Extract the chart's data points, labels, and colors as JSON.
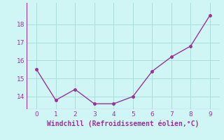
{
  "x": [
    0,
    1,
    2,
    3,
    4,
    5,
    6,
    7,
    8,
    9
  ],
  "y": [
    15.5,
    13.8,
    14.4,
    13.6,
    13.6,
    14.0,
    15.4,
    16.2,
    16.8,
    18.5
  ],
  "line_color": "#993399",
  "marker": "o",
  "marker_size": 2.5,
  "line_width": 1.0,
  "xlabel": "Windchill (Refroidissement éolien,°C)",
  "xlabel_color": "#993399",
  "xlim": [
    -0.5,
    9.5
  ],
  "ylim": [
    13.3,
    19.2
  ],
  "xticks": [
    0,
    1,
    2,
    3,
    4,
    5,
    6,
    7,
    8,
    9
  ],
  "yticks": [
    14,
    15,
    16,
    17,
    18
  ],
  "background_color": "#cff5f5",
  "grid_color": "#aadddd",
  "tick_color": "#993399",
  "label_fontsize": 7.0,
  "tick_fontsize": 6.5
}
